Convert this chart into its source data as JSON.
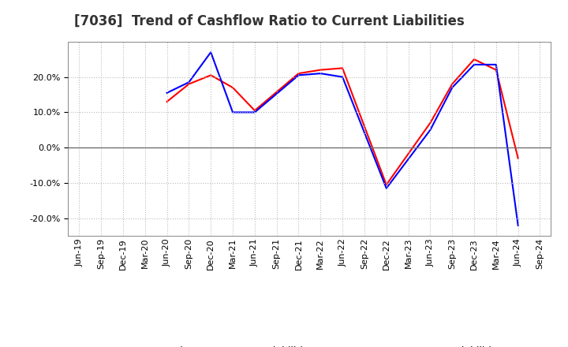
{
  "title": "[7036]  Trend of Cashflow Ratio to Current Liabilities",
  "x_labels": [
    "Jun-19",
    "Sep-19",
    "Dec-19",
    "Mar-20",
    "Jun-20",
    "Sep-20",
    "Dec-20",
    "Mar-21",
    "Jun-21",
    "Sep-21",
    "Dec-21",
    "Mar-22",
    "Jun-22",
    "Sep-22",
    "Dec-22",
    "Mar-23",
    "Jun-23",
    "Sep-23",
    "Dec-23",
    "Mar-24",
    "Jun-24",
    "Sep-24"
  ],
  "operating_cf": [
    null,
    null,
    null,
    null,
    0.13,
    0.18,
    0.205,
    0.17,
    0.105,
    null,
    0.21,
    0.22,
    0.225,
    null,
    -0.105,
    null,
    0.07,
    0.18,
    0.25,
    0.22,
    -0.03,
    null
  ],
  "free_cf": [
    null,
    null,
    null,
    null,
    0.155,
    0.185,
    0.27,
    0.1,
    0.1,
    null,
    0.205,
    0.21,
    0.2,
    null,
    -0.115,
    null,
    0.05,
    0.17,
    0.235,
    0.235,
    -0.22,
    null
  ],
  "ylim": [
    -0.25,
    0.3
  ],
  "yticks": [
    -0.2,
    -0.1,
    0.0,
    0.1,
    0.2
  ],
  "operating_color": "#FF0000",
  "free_color": "#0000FF",
  "background_color": "#FFFFFF",
  "grid_color": "#BBBBBB",
  "legend_operating": "Operating CF to Current Liabilities",
  "legend_free": "Free CF to Current Liabilities",
  "title_fontsize": 12,
  "tick_fontsize": 8,
  "legend_fontsize": 9
}
